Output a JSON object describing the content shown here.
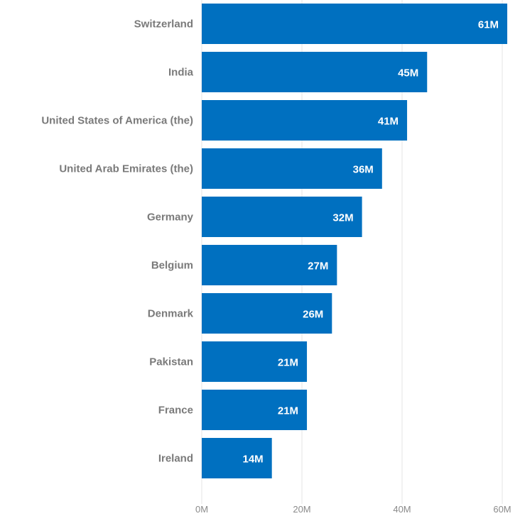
{
  "chart_data": {
    "type": "bar",
    "orientation": "horizontal",
    "categories": [
      "Switzerland",
      "India",
      "United States of America (the)",
      "United Arab Emirates (the)",
      "Germany",
      "Belgium",
      "Denmark",
      "Pakistan",
      "France",
      "Ireland"
    ],
    "values": [
      61,
      45,
      41,
      36,
      32,
      27,
      26,
      21,
      21,
      14
    ],
    "value_labels": [
      "61M",
      "45M",
      "41M",
      "36M",
      "32M",
      "27M",
      "26M",
      "21M",
      "21M",
      "14M"
    ],
    "unit": "M",
    "xlim": [
      0,
      60
    ],
    "x_ticks": [
      {
        "value": 0,
        "label": "0M"
      },
      {
        "value": 20,
        "label": "20M"
      },
      {
        "value": 40,
        "label": "40M"
      },
      {
        "value": 60,
        "label": "60M"
      }
    ],
    "grid": true,
    "legend": "none",
    "bar_color": "#0070c0"
  }
}
